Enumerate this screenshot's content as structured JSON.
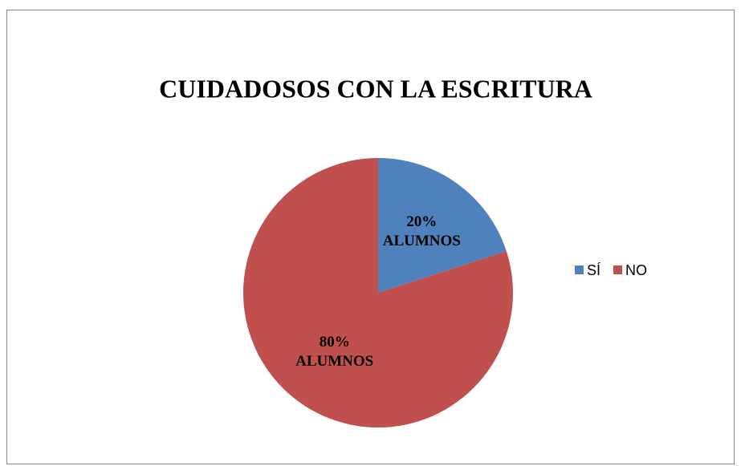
{
  "chart_data": {
    "type": "pie",
    "title": "CUIDADOSOS CON LA ESCRITURA",
    "categories": [
      "SÍ",
      "NO"
    ],
    "values": [
      20,
      80
    ],
    "value_labels": [
      "20% ALUMNOS",
      "80% ALUMNOS"
    ],
    "colors": [
      "#4f81bd",
      "#c0504d"
    ],
    "legend": "right"
  }
}
